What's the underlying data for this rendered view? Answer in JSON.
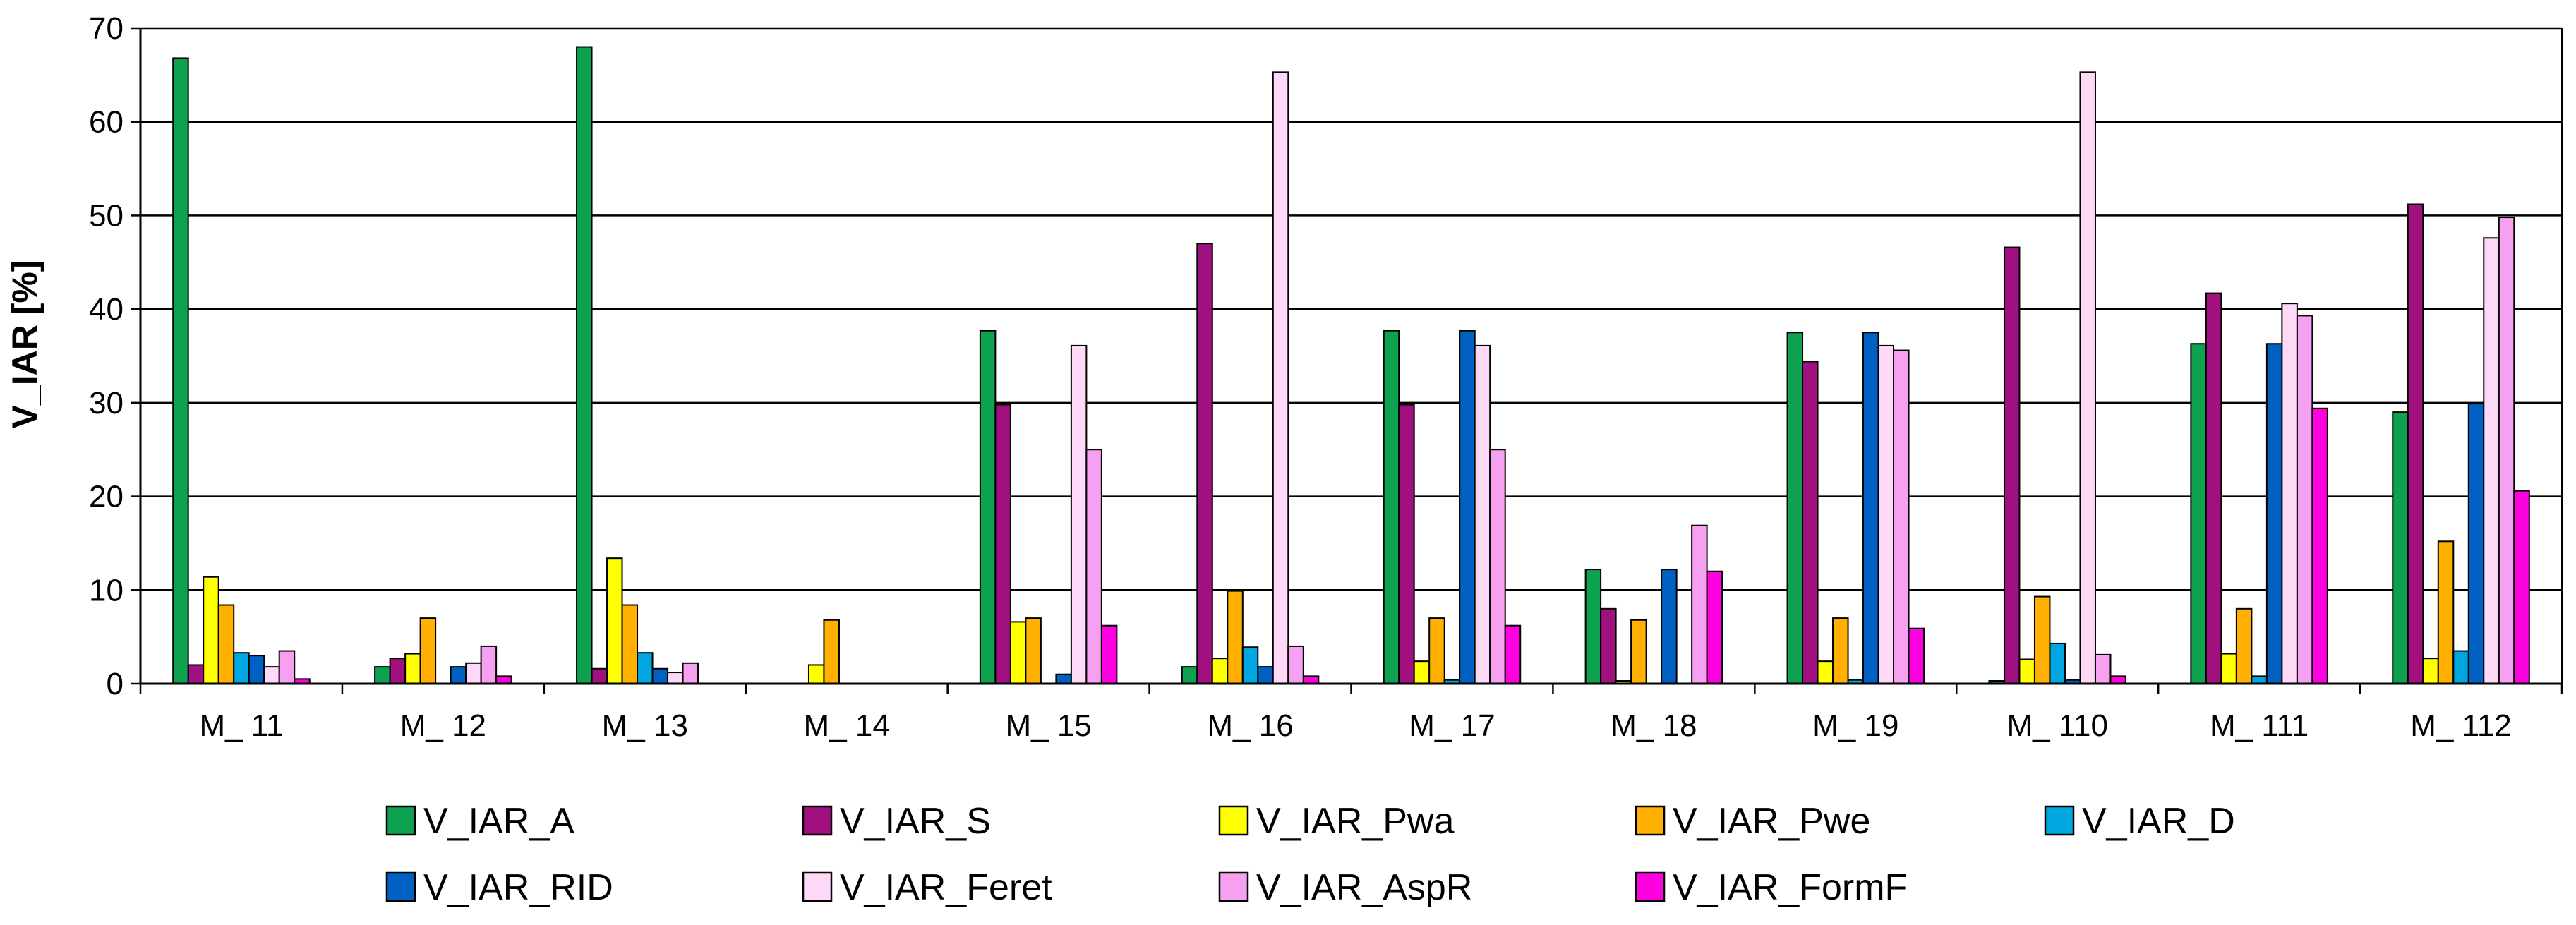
{
  "chart_data": {
    "type": "bar",
    "title": "",
    "xlabel": "",
    "ylabel": "V_IAR [%]",
    "ylim": [
      0,
      70
    ],
    "yticks": [
      "0",
      "10",
      "20",
      "30",
      "40",
      "50",
      "60",
      "70"
    ],
    "grid": true,
    "legend_position": "bottom",
    "categories": [
      "M_ 11",
      "M_ 12",
      "M_ 13",
      "M_ 14",
      "M_ 15",
      "M_ 16",
      "M_ 17",
      "M_ 18",
      "M_ 19",
      "M_ 110",
      "M_ 111",
      "M_ 112"
    ],
    "series": [
      {
        "name": "V_IAR_A",
        "color": "#0ea150",
        "values": [
          66.8,
          1.8,
          68.0,
          0.0,
          37.7,
          1.8,
          37.7,
          12.2,
          37.5,
          0.3,
          36.3,
          29.0
        ]
      },
      {
        "name": "V_IAR_S",
        "color": "#a0117f",
        "values": [
          2.0,
          2.7,
          1.6,
          0.0,
          29.8,
          47.0,
          29.8,
          8.0,
          34.4,
          46.6,
          41.7,
          51.2
        ]
      },
      {
        "name": "V_IAR_Pwa",
        "color": "#ffff00",
        "values": [
          11.4,
          3.2,
          13.4,
          2.0,
          6.6,
          2.7,
          2.4,
          0.3,
          2.4,
          2.6,
          3.2,
          2.7
        ]
      },
      {
        "name": "V_IAR_Pwe",
        "color": "#ffb000",
        "values": [
          8.4,
          7.0,
          8.4,
          6.8,
          7.0,
          9.9,
          7.0,
          6.8,
          7.0,
          9.3,
          8.0,
          15.2
        ]
      },
      {
        "name": "V_IAR_D",
        "color": "#00a6e0",
        "values": [
          3.3,
          0.0,
          3.3,
          0.0,
          0.0,
          3.9,
          0.4,
          0.0,
          0.4,
          4.3,
          0.8,
          3.5
        ]
      },
      {
        "name": "V_IAR_RID",
        "color": "#0061c2",
        "values": [
          3.0,
          1.8,
          1.6,
          0.0,
          1.0,
          1.8,
          37.7,
          12.2,
          37.5,
          0.4,
          36.3,
          29.9
        ]
      },
      {
        "name": "V_IAR_Feret",
        "color": "#fdd9f7",
        "values": [
          1.8,
          2.2,
          1.2,
          0.0,
          36.1,
          65.3,
          36.1,
          0.0,
          36.1,
          65.3,
          40.6,
          47.6
        ]
      },
      {
        "name": "V_IAR_AspR",
        "color": "#f6a0f2",
        "values": [
          3.5,
          4.0,
          2.2,
          0.0,
          25.0,
          4.0,
          25.0,
          16.9,
          35.6,
          3.1,
          39.3,
          49.8
        ]
      },
      {
        "name": "V_IAR_FormF",
        "color": "#ff00e0",
        "values": [
          0.5,
          0.8,
          0.0,
          0.0,
          6.2,
          0.8,
          6.2,
          12.0,
          5.9,
          0.8,
          29.4,
          20.6
        ]
      }
    ]
  }
}
